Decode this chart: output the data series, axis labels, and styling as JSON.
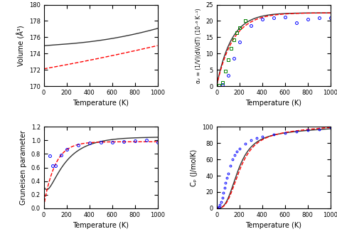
{
  "fig_width": 4.74,
  "fig_height": 3.29,
  "dpi": 100,
  "subplots": {
    "volume": {
      "xlim": [
        0,
        1000
      ],
      "ylim": [
        170,
        180
      ],
      "yticks": [
        170,
        172,
        174,
        176,
        178,
        180
      ],
      "ylabel": "Volume (Å³)",
      "xlabel": "Temperature (K)"
    },
    "alpha": {
      "xlim": [
        0,
        1000
      ],
      "ylim": [
        0,
        25
      ],
      "yticks": [
        0,
        5,
        10,
        15,
        20,
        25
      ],
      "ylabel": "αᵥ = (1/V)(dV/dT) (10⁻⁶ K⁻¹)",
      "xlabel": "Temperature (K)"
    },
    "gruneisen": {
      "xlim": [
        0,
        1000
      ],
      "ylim": [
        0,
        1.2
      ],
      "yticks": [
        0,
        0.2,
        0.4,
        0.6,
        0.8,
        1.0,
        1.2
      ],
      "ylabel": "Gruneisen parameter",
      "xlabel": "Temperature (K)"
    },
    "cp": {
      "xlim": [
        0,
        1000
      ],
      "ylim": [
        0,
        100
      ],
      "yticks": [
        0,
        20,
        40,
        60,
        80,
        100
      ],
      "ylabel": "Cₚ (J/molK)",
      "xlabel": "Temperature (K)"
    }
  },
  "vol_black_start": 175.08,
  "vol_black_end": 178.2,
  "vol_black_theta": 200,
  "vol_red_start": 172.12,
  "vol_red_slope": 0.0026,
  "alpha_max_black": 22.5,
  "alpha_theta_black": 130,
  "alpha_max_red": 22.5,
  "alpha_theta_red": 145,
  "T_blue_alpha": [
    50,
    100,
    150,
    200,
    300,
    400,
    500,
    600,
    700,
    800,
    900,
    1000
  ],
  "alpha_blue": [
    0.4,
    3.2,
    8.5,
    13.5,
    18.5,
    20.5,
    21.0,
    21.2,
    19.5,
    20.5,
    21.0,
    21.0
  ],
  "T_green_alpha": [
    20,
    50,
    75,
    100,
    125,
    150,
    175,
    200,
    250
  ],
  "alpha_green": [
    0.15,
    1.2,
    4.5,
    8.0,
    11.5,
    14.2,
    16.5,
    18.0,
    20.0
  ],
  "T_blue_grun": [
    50,
    75,
    100,
    150,
    200,
    300,
    400,
    500,
    600,
    700,
    800,
    900,
    1000
  ],
  "grun_blue": [
    0.77,
    0.63,
    0.63,
    0.78,
    0.87,
    0.93,
    0.96,
    0.975,
    0.975,
    0.98,
    0.99,
    1.0,
    0.975
  ],
  "T_blue_cp": [
    10,
    20,
    30,
    40,
    50,
    60,
    70,
    80,
    90,
    100,
    120,
    140,
    160,
    180,
    200,
    250,
    300,
    350,
    400,
    500,
    600,
    700,
    800,
    900,
    1000
  ],
  "cp_blue": [
    0.3,
    1.5,
    4.0,
    8.0,
    13.0,
    19.0,
    25.0,
    31.5,
    37.5,
    43.0,
    52.5,
    60.0,
    65.5,
    70.0,
    73.5,
    79.5,
    83.5,
    86.0,
    88.0,
    91.0,
    92.5,
    94.0,
    95.5,
    97.0,
    99.0
  ]
}
